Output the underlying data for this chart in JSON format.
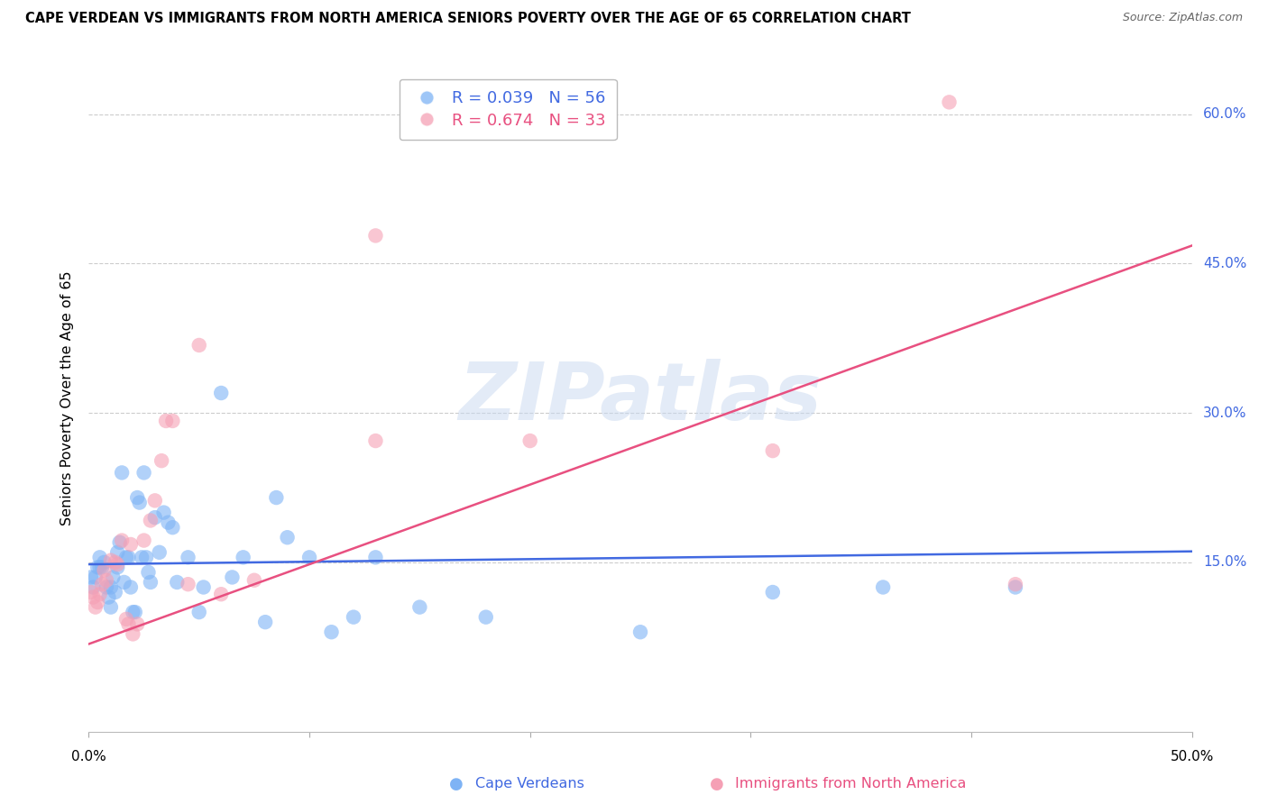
{
  "title": "CAPE VERDEAN VS IMMIGRANTS FROM NORTH AMERICA SENIORS POVERTY OVER THE AGE OF 65 CORRELATION CHART",
  "source": "Source: ZipAtlas.com",
  "ylabel": "Seniors Poverty Over the Age of 65",
  "legend_R1": "R = 0.039",
  "legend_N1": "N = 56",
  "legend_R2": "R = 0.674",
  "legend_N2": "N = 33",
  "color_blue": "#7EB3F5",
  "color_pink": "#F5A0B5",
  "color_line_blue": "#4169E1",
  "color_line_pink": "#E85080",
  "color_ytick": "#4169E1",
  "color_grid": "#cccccc",
  "watermark_text": "ZIPatlas",
  "watermark_color": "#c8d8f0",
  "xlim": [
    0.0,
    0.5
  ],
  "ylim": [
    -0.02,
    0.65
  ],
  "yticks": [
    0.0,
    0.15,
    0.3,
    0.45,
    0.6
  ],
  "ytick_labels": [
    "",
    "15.0%",
    "30.0%",
    "45.0%",
    "60.0%"
  ],
  "xtick_positions": [
    0.0,
    0.1,
    0.2,
    0.3,
    0.4,
    0.5
  ],
  "blue_points": [
    [
      0.001,
      0.135
    ],
    [
      0.002,
      0.125
    ],
    [
      0.003,
      0.135
    ],
    [
      0.004,
      0.145
    ],
    [
      0.005,
      0.155
    ],
    [
      0.005,
      0.145
    ],
    [
      0.006,
      0.145
    ],
    [
      0.007,
      0.15
    ],
    [
      0.008,
      0.125
    ],
    [
      0.009,
      0.115
    ],
    [
      0.01,
      0.125
    ],
    [
      0.01,
      0.105
    ],
    [
      0.011,
      0.135
    ],
    [
      0.012,
      0.12
    ],
    [
      0.013,
      0.16
    ],
    [
      0.013,
      0.145
    ],
    [
      0.014,
      0.17
    ],
    [
      0.015,
      0.24
    ],
    [
      0.016,
      0.13
    ],
    [
      0.017,
      0.155
    ],
    [
      0.018,
      0.155
    ],
    [
      0.019,
      0.125
    ],
    [
      0.02,
      0.1
    ],
    [
      0.021,
      0.1
    ],
    [
      0.022,
      0.215
    ],
    [
      0.023,
      0.21
    ],
    [
      0.024,
      0.155
    ],
    [
      0.025,
      0.24
    ],
    [
      0.026,
      0.155
    ],
    [
      0.027,
      0.14
    ],
    [
      0.028,
      0.13
    ],
    [
      0.03,
      0.195
    ],
    [
      0.032,
      0.16
    ],
    [
      0.034,
      0.2
    ],
    [
      0.036,
      0.19
    ],
    [
      0.038,
      0.185
    ],
    [
      0.04,
      0.13
    ],
    [
      0.045,
      0.155
    ],
    [
      0.05,
      0.1
    ],
    [
      0.052,
      0.125
    ],
    [
      0.06,
      0.32
    ],
    [
      0.065,
      0.135
    ],
    [
      0.07,
      0.155
    ],
    [
      0.08,
      0.09
    ],
    [
      0.085,
      0.215
    ],
    [
      0.09,
      0.175
    ],
    [
      0.1,
      0.155
    ],
    [
      0.11,
      0.08
    ],
    [
      0.12,
      0.095
    ],
    [
      0.13,
      0.155
    ],
    [
      0.15,
      0.105
    ],
    [
      0.18,
      0.095
    ],
    [
      0.25,
      0.08
    ],
    [
      0.31,
      0.12
    ],
    [
      0.36,
      0.125
    ],
    [
      0.42,
      0.125
    ]
  ],
  "pink_points": [
    [
      0.001,
      0.12
    ],
    [
      0.002,
      0.115
    ],
    [
      0.003,
      0.105
    ],
    [
      0.004,
      0.11
    ],
    [
      0.005,
      0.118
    ],
    [
      0.006,
      0.128
    ],
    [
      0.007,
      0.142
    ],
    [
      0.008,
      0.132
    ],
    [
      0.01,
      0.152
    ],
    [
      0.012,
      0.15
    ],
    [
      0.013,
      0.148
    ],
    [
      0.015,
      0.172
    ],
    [
      0.017,
      0.093
    ],
    [
      0.018,
      0.088
    ],
    [
      0.019,
      0.168
    ],
    [
      0.02,
      0.078
    ],
    [
      0.022,
      0.088
    ],
    [
      0.025,
      0.172
    ],
    [
      0.028,
      0.192
    ],
    [
      0.03,
      0.212
    ],
    [
      0.033,
      0.252
    ],
    [
      0.035,
      0.292
    ],
    [
      0.038,
      0.292
    ],
    [
      0.045,
      0.128
    ],
    [
      0.05,
      0.368
    ],
    [
      0.06,
      0.118
    ],
    [
      0.075,
      0.132
    ],
    [
      0.13,
      0.272
    ],
    [
      0.2,
      0.272
    ],
    [
      0.31,
      0.262
    ],
    [
      0.39,
      0.612
    ],
    [
      0.42,
      0.128
    ],
    [
      0.13,
      0.478
    ]
  ],
  "blue_line": [
    [
      0.0,
      0.148
    ],
    [
      0.5,
      0.161
    ]
  ],
  "pink_line": [
    [
      0.0,
      0.068
    ],
    [
      0.5,
      0.468
    ]
  ]
}
